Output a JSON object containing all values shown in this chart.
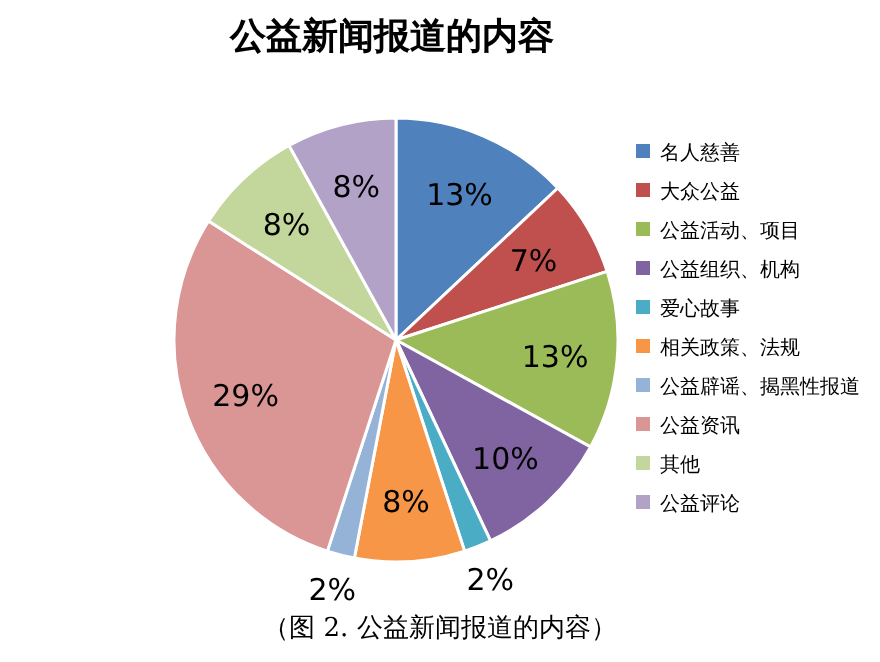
{
  "chart_data": {
    "type": "pie",
    "title": "公益新闻报道的内容",
    "categories": [
      "名人慈善",
      "大众公益",
      "公益活动、项目",
      "公益组织、机构",
      "爱心故事",
      "相关政策、法规",
      "公益辟谣、揭黑性报道",
      "公益资讯",
      "其他",
      "公益评论"
    ],
    "values": [
      13,
      7,
      13,
      10,
      2,
      8,
      2,
      29,
      8,
      8
    ],
    "value_labels": [
      "13%",
      "7%",
      "13%",
      "10%",
      "2%",
      "8%",
      "2%",
      "29%",
      "8%",
      "8%"
    ],
    "colors": [
      "#4f81bd",
      "#c0504d",
      "#9bbb59",
      "#8064a2",
      "#4bacc6",
      "#f79646",
      "#95b3d7",
      "#d99694",
      "#c3d69b",
      "#b3a2c7"
    ],
    "legend": "right",
    "annotations": [
      "（图 2. 公益新闻报道的内容）"
    ]
  }
}
